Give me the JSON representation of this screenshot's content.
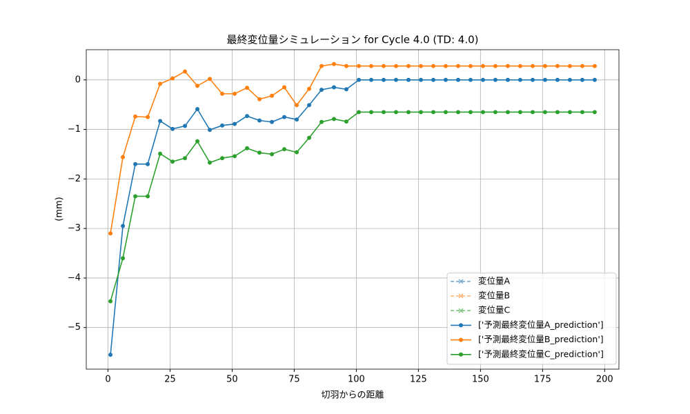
{
  "chart_data": {
    "type": "line",
    "title": "最終変位量シミュレーション for Cycle 4.0 (TD: 4.0)",
    "x_label": "切羽からの距離",
    "y_label": "(mm)",
    "x": [
      1,
      6,
      11,
      16,
      21,
      26,
      31,
      36,
      41,
      46,
      51,
      56,
      61,
      66,
      71,
      76,
      81,
      86,
      91,
      96,
      101,
      106,
      111,
      116,
      121,
      126,
      131,
      136,
      141,
      146,
      151,
      156,
      161,
      166,
      171,
      176,
      181,
      186,
      191,
      196
    ],
    "series": [
      {
        "name": "変位量A",
        "color": "#1f77b4",
        "linestyle": "dashed",
        "marker": "x",
        "values": [
          null,
          null,
          null,
          null,
          null,
          null,
          null,
          null,
          null,
          null,
          null,
          null,
          null,
          null,
          null,
          null,
          null,
          null,
          null,
          null,
          null,
          null,
          null,
          null,
          null,
          null,
          null,
          null,
          null,
          null,
          null,
          null,
          null,
          null,
          null,
          null,
          null,
          null,
          null,
          null
        ]
      },
      {
        "name": "変位量B",
        "color": "#ff7f0e",
        "linestyle": "dashed",
        "marker": "x",
        "values": [
          null,
          null,
          null,
          null,
          null,
          null,
          null,
          null,
          null,
          null,
          null,
          null,
          null,
          null,
          null,
          null,
          null,
          null,
          null,
          null,
          null,
          null,
          null,
          null,
          null,
          null,
          null,
          null,
          null,
          null,
          null,
          null,
          null,
          null,
          null,
          null,
          null,
          null,
          null,
          null
        ]
      },
      {
        "name": "変位量C",
        "color": "#2ca02c",
        "linestyle": "dashed",
        "marker": "x",
        "values": [
          null,
          null,
          null,
          null,
          null,
          null,
          null,
          null,
          null,
          null,
          null,
          null,
          null,
          null,
          null,
          null,
          null,
          null,
          null,
          null,
          null,
          null,
          null,
          null,
          null,
          null,
          null,
          null,
          null,
          null,
          null,
          null,
          null,
          null,
          null,
          null,
          null,
          null,
          null,
          null
        ]
      },
      {
        "name": "['予測最終変位量A_prediction']",
        "color": "#1f77b4",
        "linestyle": "solid",
        "marker": "o",
        "values": [
          -5.55,
          -2.95,
          -1.7,
          -1.7,
          -0.83,
          -0.99,
          -0.93,
          -0.59,
          -1.01,
          -0.92,
          -0.89,
          -0.73,
          -0.82,
          -0.85,
          -0.75,
          -0.8,
          -0.51,
          -0.2,
          -0.15,
          -0.19,
          0,
          0,
          0,
          0,
          0,
          0,
          0,
          0,
          0,
          0,
          0,
          0,
          0,
          0,
          0,
          0,
          0,
          0,
          0,
          0
        ]
      },
      {
        "name": "['予測最終変位量B_prediction']",
        "color": "#ff7f0e",
        "linestyle": "solid",
        "marker": "o",
        "values": [
          -3.1,
          -1.56,
          -0.74,
          -0.75,
          -0.08,
          0.03,
          0.17,
          -0.12,
          0.02,
          -0.28,
          -0.28,
          -0.16,
          -0.39,
          -0.32,
          -0.15,
          -0.51,
          -0.18,
          0.28,
          0.32,
          0.28,
          0.28,
          0.28,
          0.28,
          0.28,
          0.28,
          0.28,
          0.28,
          0.28,
          0.28,
          0.28,
          0.28,
          0.28,
          0.28,
          0.28,
          0.28,
          0.28,
          0.28,
          0.28,
          0.28,
          0.28
        ]
      },
      {
        "name": "['予測最終変位量C_prediction']",
        "color": "#2ca02c",
        "linestyle": "solid",
        "marker": "o",
        "values": [
          -4.47,
          -3.6,
          -2.35,
          -2.35,
          -1.49,
          -1.65,
          -1.58,
          -1.24,
          -1.67,
          -1.58,
          -1.54,
          -1.38,
          -1.47,
          -1.5,
          -1.4,
          -1.46,
          -1.17,
          -0.85,
          -0.79,
          -0.84,
          -0.65,
          -0.65,
          -0.65,
          -0.65,
          -0.65,
          -0.65,
          -0.65,
          -0.65,
          -0.65,
          -0.65,
          -0.65,
          -0.65,
          -0.65,
          -0.65,
          -0.65,
          -0.65,
          -0.65,
          -0.65,
          -0.65,
          -0.65
        ]
      }
    ],
    "xlim": [
      -8.75,
      205.75
    ],
    "ylim": [
      -5.84,
      0.61
    ],
    "xticks": [
      0,
      25,
      50,
      75,
      100,
      125,
      150,
      175,
      200
    ],
    "yticks": [
      {
        "value": -5,
        "label": "−5"
      },
      {
        "value": -4,
        "label": "−4"
      },
      {
        "value": -3,
        "label": "−3"
      },
      {
        "value": -2,
        "label": "−2"
      },
      {
        "value": -1,
        "label": "−1"
      },
      0
    ],
    "grid": true,
    "legend": "lower right"
  }
}
